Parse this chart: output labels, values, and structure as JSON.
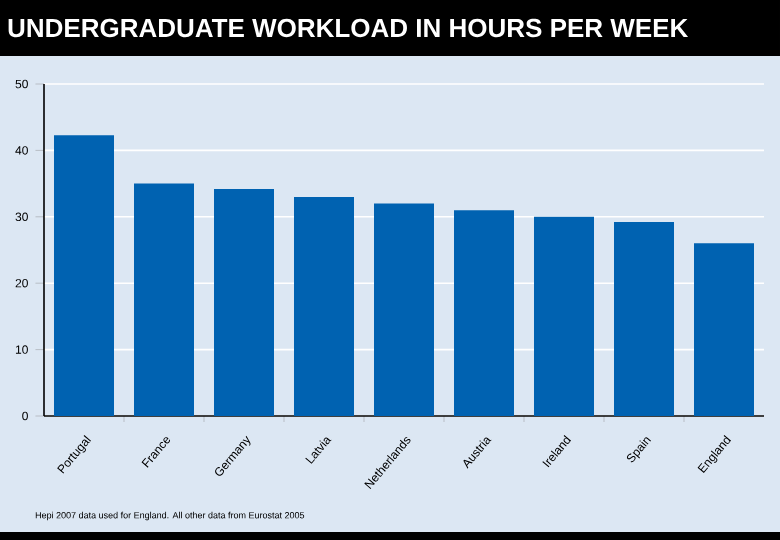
{
  "chart_data": {
    "type": "bar",
    "title": "UNDERGRADUATE WORKLOAD IN HOURS PER WEEK",
    "categories": [
      "Portugal",
      "France",
      "Germany",
      "Latvia",
      "Netherlands",
      "Austria",
      "Ireland",
      "Spain",
      "England"
    ],
    "values": [
      42.3,
      35,
      34.2,
      33,
      32,
      31,
      30,
      29.2,
      26
    ],
    "color": "#0062b1",
    "ylim": [
      0,
      50
    ],
    "yticks": [
      0,
      10,
      20,
      30,
      40,
      50
    ],
    "grid": "y",
    "annotations": [
      "Hepi 2007 data used for England. All other data from Eurostat 2005"
    ]
  }
}
